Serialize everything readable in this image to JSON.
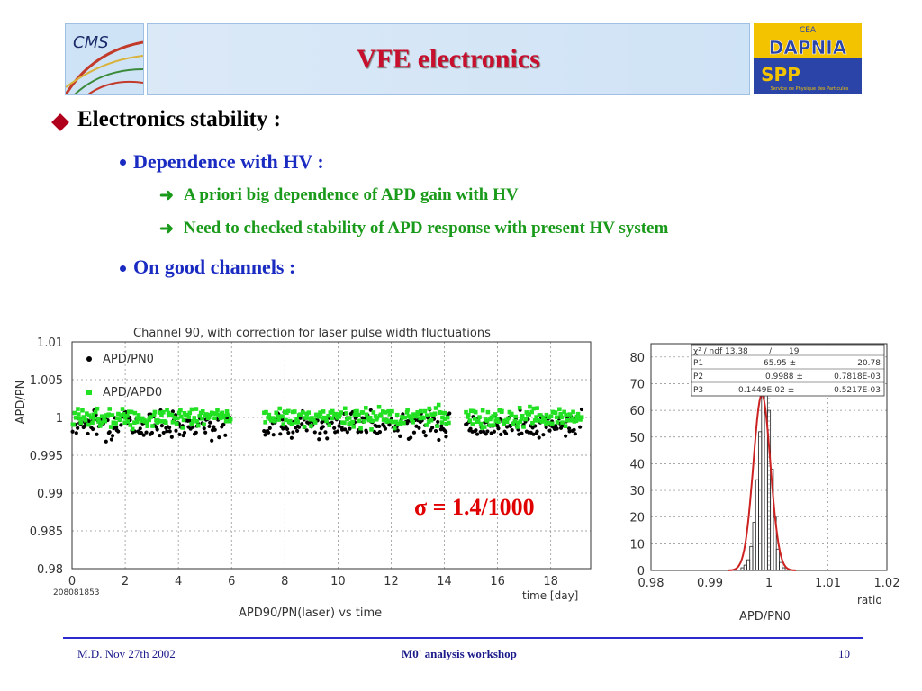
{
  "title": "VFE electronics",
  "logos": {
    "cms": "CMS",
    "dapnia_top": "CEA",
    "dapnia": "DAPNIA",
    "spp": "SPP",
    "spp_sub": "Service de Physique des Particules"
  },
  "bullets": {
    "b1": "Electronics stability :",
    "b2a": "Dependence with HV :",
    "b3a": "A priori big dependence of APD gain with HV",
    "b3b": "Need to checked stability of APD response with present HV system",
    "b2b": "On good channels :"
  },
  "annotation": "σ = 1.4/1000",
  "footer": {
    "left": "M.D. Nov 27th 2002",
    "center": "M0' analysis workshop",
    "right": "10"
  },
  "chart_data": [
    {
      "type": "scatter",
      "title": "Channel 90, with correction for laser pulse width fluctuations",
      "xlabel": "time [day]",
      "xlabel2": "APD90/PN(laser) vs time",
      "ylabel": "APD/PN",
      "run_label": "208081853",
      "xlim": [
        0,
        19.5
      ],
      "ylim": [
        0.98,
        1.01
      ],
      "xticks": [
        "0",
        "2",
        "4",
        "6",
        "8",
        "10",
        "12",
        "14",
        "16",
        "18"
      ],
      "yticks": [
        "0.98",
        "0.985",
        "0.99",
        "0.995",
        "1",
        "1.005",
        "1.01"
      ],
      "series": [
        {
          "name": "APD/PN0",
          "color": "#000000",
          "segments": [
            [
              0.0,
              6.0
            ],
            [
              7.2,
              14.2
            ],
            [
              14.8,
              19.2
            ]
          ],
          "mean": 0.9991,
          "spread": 0.0012
        },
        {
          "name": "APD/APD0",
          "color": "#22e022",
          "segments": [
            [
              0.0,
              6.0
            ],
            [
              7.2,
              14.2
            ],
            [
              14.8,
              19.2
            ]
          ],
          "mean": 1.0,
          "spread": 0.0009
        }
      ]
    },
    {
      "type": "bar",
      "xlabel": "APD/PN0",
      "xlabel_right": "ratio",
      "xlim": [
        0.98,
        1.02
      ],
      "ylim": [
        0,
        85
      ],
      "xticks": [
        "0.98",
        "0.99",
        "1",
        "1.01",
        "1.02"
      ],
      "yticks": [
        "0",
        "10",
        "20",
        "30",
        "40",
        "50",
        "60",
        "70",
        "80"
      ],
      "bin_width": 0.0005,
      "bins_x": [
        0.9955,
        0.996,
        0.9965,
        0.997,
        0.9975,
        0.998,
        0.9985,
        0.999,
        0.9995,
        1.0,
        1.0005,
        1.001,
        1.0015,
        1.002,
        1.0025
      ],
      "bins_y": [
        1,
        2,
        4,
        9,
        18,
        34,
        52,
        70,
        76,
        60,
        38,
        20,
        8,
        3,
        1
      ],
      "fit": {
        "p1": 65.95,
        "p2": 0.9988,
        "p3": 0.001449
      },
      "stats": {
        "header_left": "χ² / ndf 13.38",
        "header_sep": "/",
        "header_right": "19",
        "rows": [
          {
            "name": "P1",
            "value": "65.95 ±",
            "error": "20.78"
          },
          {
            "name": "P2",
            "value": "0.9988 ±",
            "error": "0.7818E-03"
          },
          {
            "name": "P3",
            "value": "0.1449E-02 ±",
            "error": "0.5217E-03"
          }
        ]
      }
    }
  ]
}
